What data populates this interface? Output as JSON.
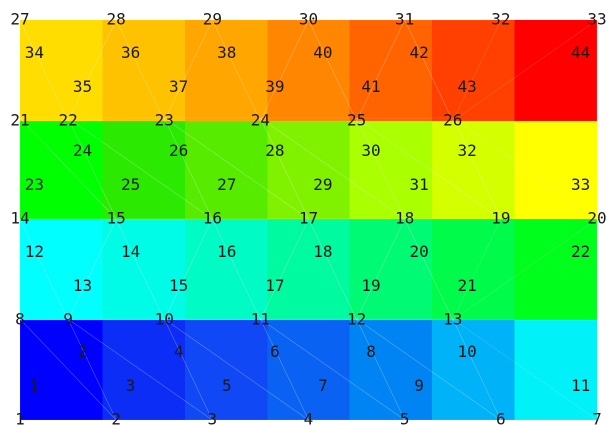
{
  "mesh": {
    "rows": [
      {
        "node_labels": [
          "1",
          "2",
          "3",
          "4",
          "5",
          "6",
          "7"
        ],
        "band_colors": [
          "#0000ff",
          "#0b2df6",
          "#1148f6",
          "#0a62f3",
          "#0084f3",
          "#00b2f7",
          "#00f1f7"
        ],
        "tri_labels": [
          "1",
          "2",
          "3",
          "4",
          "5",
          "6",
          "7",
          "8",
          "9",
          "10",
          "11"
        ]
      },
      {
        "node_labels": [
          "8",
          "9",
          "10",
          "11",
          "12",
          "13"
        ],
        "band_colors": [
          "#00ffff",
          "#00fce6",
          "#00fbc4",
          "#00fa9f",
          "#00fa74",
          "#00fb4b",
          "#00fe1d"
        ],
        "tri_labels": [
          "12",
          "13",
          "14",
          "15",
          "16",
          "17",
          "18",
          "19",
          "20",
          "21",
          "22"
        ]
      },
      {
        "node_labels": [
          "14",
          "15",
          "16",
          "17",
          "18",
          "19",
          "20"
        ],
        "band_colors": [
          "#00ff00",
          "#2be900",
          "#57eb00",
          "#80f200",
          "#aaff00",
          "#d4ff00",
          "#ffff00"
        ],
        "tri_labels": [
          "23",
          "24",
          "25",
          "26",
          "27",
          "28",
          "29",
          "30",
          "31",
          "32",
          "33"
        ]
      },
      {
        "node_labels": [
          "21",
          "22",
          "23",
          "24",
          "25",
          "26"
        ],
        "band_colors": [
          "#ffdd00",
          "#ffc200",
          "#ffa600",
          "#ff8600",
          "#ff6400",
          "#ff4000",
          "#ff0000"
        ],
        "tri_labels": [
          "34",
          "35",
          "36",
          "37",
          "38",
          "39",
          "40",
          "41",
          "42",
          "43",
          "44"
        ]
      }
    ],
    "top_node_labels": [
      "27",
      "28",
      "29",
      "30",
      "31",
      "32",
      "33"
    ]
  }
}
